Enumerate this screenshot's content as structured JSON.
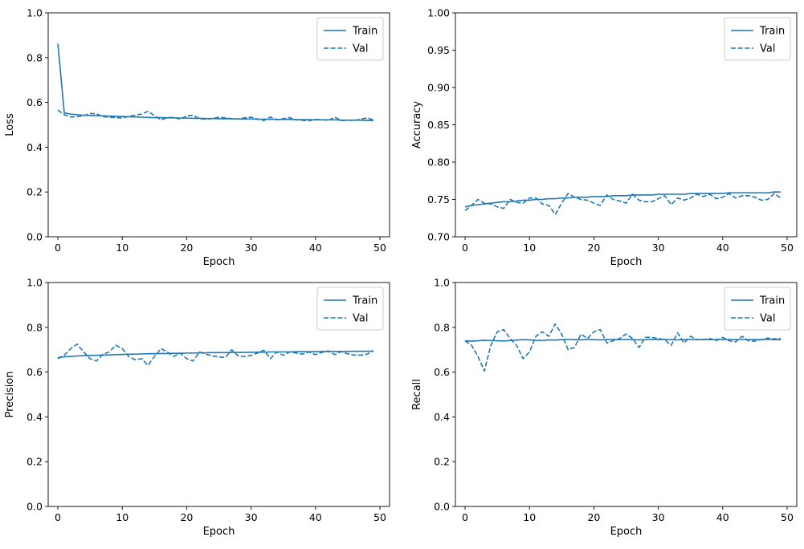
{
  "colors": {
    "series": "#1f77b4",
    "frame": "#000000",
    "legend_border": "#cccccc"
  },
  "chart_data": [
    {
      "type": "line",
      "xlabel": "Epoch",
      "ylabel": "Loss",
      "xlim": [
        -1.5,
        51.5
      ],
      "ylim": [
        0,
        1
      ],
      "xticks": [
        0,
        10,
        20,
        30,
        40,
        50
      ],
      "xtick_labels": [
        "0",
        "10",
        "20",
        "30",
        "40",
        "50"
      ],
      "yticks": [
        0,
        0.2,
        0.4,
        0.6,
        0.8,
        1.0
      ],
      "ytick_labels": [
        "0.0",
        "0.2",
        "0.4",
        "0.6",
        "0.8",
        "1.0"
      ],
      "legend": "top-right",
      "grid": false,
      "series": [
        {
          "name": "Train",
          "style": "solid",
          "values": [
            0.862,
            0.553,
            0.548,
            0.545,
            0.543,
            0.542,
            0.541,
            0.54,
            0.539,
            0.538,
            0.537,
            0.536,
            0.535,
            0.534,
            0.533,
            0.532,
            0.532,
            0.531,
            0.531,
            0.53,
            0.53,
            0.529,
            0.529,
            0.528,
            0.528,
            0.527,
            0.527,
            0.527,
            0.526,
            0.526,
            0.526,
            0.525,
            0.525,
            0.525,
            0.524,
            0.524,
            0.524,
            0.523,
            0.523,
            0.523,
            0.522,
            0.522,
            0.522,
            0.522,
            0.521,
            0.521,
            0.521,
            0.521,
            0.52,
            0.519
          ]
        },
        {
          "name": "Val",
          "style": "dashed",
          "values": [
            0.566,
            0.545,
            0.535,
            0.536,
            0.54,
            0.551,
            0.549,
            0.536,
            0.534,
            0.532,
            0.53,
            0.538,
            0.543,
            0.548,
            0.56,
            0.541,
            0.522,
            0.532,
            0.533,
            0.525,
            0.54,
            0.543,
            0.527,
            0.525,
            0.528,
            0.534,
            0.531,
            0.527,
            0.526,
            0.531,
            0.534,
            0.526,
            0.519,
            0.535,
            0.522,
            0.527,
            0.532,
            0.522,
            0.52,
            0.518,
            0.524,
            0.523,
            0.52,
            0.534,
            0.519,
            0.521,
            0.519,
            0.525,
            0.531,
            0.522
          ]
        }
      ]
    },
    {
      "type": "line",
      "xlabel": "Epoch",
      "ylabel": "Accuracy",
      "xlim": [
        -1.5,
        51.5
      ],
      "ylim": [
        0.7,
        1
      ],
      "xticks": [
        0,
        10,
        20,
        30,
        40,
        50
      ],
      "xtick_labels": [
        "0",
        "10",
        "20",
        "30",
        "40",
        "50"
      ],
      "yticks": [
        0.7,
        0.75,
        0.8,
        0.85,
        0.9,
        0.95,
        1.0
      ],
      "ytick_labels": [
        "0.70",
        "0.75",
        "0.80",
        "0.85",
        "0.90",
        "0.95",
        "1.00"
      ],
      "legend": "top-right",
      "grid": false,
      "series": [
        {
          "name": "Train",
          "style": "solid",
          "values": [
            0.74,
            0.742,
            0.743,
            0.744,
            0.745,
            0.746,
            0.747,
            0.747,
            0.748,
            0.749,
            0.749,
            0.75,
            0.75,
            0.751,
            0.751,
            0.752,
            0.752,
            0.753,
            0.753,
            0.753,
            0.754,
            0.754,
            0.754,
            0.755,
            0.755,
            0.755,
            0.756,
            0.756,
            0.756,
            0.756,
            0.757,
            0.757,
            0.757,
            0.757,
            0.757,
            0.758,
            0.758,
            0.758,
            0.758,
            0.758,
            0.758,
            0.759,
            0.759,
            0.759,
            0.759,
            0.759,
            0.759,
            0.759,
            0.76,
            0.76
          ]
        },
        {
          "name": "Val",
          "style": "dashed",
          "values": [
            0.735,
            0.742,
            0.75,
            0.745,
            0.744,
            0.74,
            0.738,
            0.75,
            0.746,
            0.745,
            0.752,
            0.752,
            0.744,
            0.742,
            0.73,
            0.745,
            0.758,
            0.753,
            0.75,
            0.749,
            0.745,
            0.742,
            0.756,
            0.75,
            0.748,
            0.745,
            0.757,
            0.749,
            0.747,
            0.747,
            0.751,
            0.755,
            0.743,
            0.752,
            0.749,
            0.752,
            0.757,
            0.754,
            0.757,
            0.751,
            0.753,
            0.758,
            0.752,
            0.755,
            0.755,
            0.753,
            0.749,
            0.75,
            0.758,
            0.752
          ]
        }
      ]
    },
    {
      "type": "line",
      "xlabel": "Epoch",
      "ylabel": "Precision",
      "xlim": [
        -1.5,
        51.5
      ],
      "ylim": [
        0,
        1
      ],
      "xticks": [
        0,
        10,
        20,
        30,
        40,
        50
      ],
      "xtick_labels": [
        "0",
        "10",
        "20",
        "30",
        "40",
        "50"
      ],
      "yticks": [
        0,
        0.2,
        0.4,
        0.6,
        0.8,
        1.0
      ],
      "ytick_labels": [
        "0.0",
        "0.2",
        "0.4",
        "0.6",
        "0.8",
        "1.0"
      ],
      "legend": "top-right",
      "grid": false,
      "series": [
        {
          "name": "Train",
          "style": "solid",
          "values": [
            0.665,
            0.668,
            0.67,
            0.672,
            0.673,
            0.674,
            0.675,
            0.676,
            0.677,
            0.678,
            0.679,
            0.68,
            0.68,
            0.681,
            0.682,
            0.682,
            0.683,
            0.683,
            0.684,
            0.684,
            0.685,
            0.685,
            0.686,
            0.686,
            0.687,
            0.687,
            0.687,
            0.688,
            0.688,
            0.688,
            0.689,
            0.689,
            0.689,
            0.69,
            0.69,
            0.69,
            0.69,
            0.691,
            0.691,
            0.691,
            0.691,
            0.692,
            0.692,
            0.692,
            0.692,
            0.693,
            0.693,
            0.693,
            0.693,
            0.694
          ]
        },
        {
          "name": "Val",
          "style": "dashed",
          "values": [
            0.66,
            0.675,
            0.705,
            0.725,
            0.69,
            0.66,
            0.65,
            0.68,
            0.69,
            0.72,
            0.705,
            0.67,
            0.655,
            0.66,
            0.63,
            0.67,
            0.705,
            0.69,
            0.67,
            0.685,
            0.66,
            0.65,
            0.69,
            0.68,
            0.672,
            0.668,
            0.665,
            0.7,
            0.672,
            0.67,
            0.675,
            0.685,
            0.698,
            0.66,
            0.69,
            0.675,
            0.69,
            0.685,
            0.68,
            0.69,
            0.678,
            0.688,
            0.695,
            0.678,
            0.692,
            0.682,
            0.676,
            0.676,
            0.68,
            0.695
          ]
        }
      ]
    },
    {
      "type": "line",
      "xlabel": "Epoch",
      "ylabel": "Recall",
      "xlim": [
        -1.5,
        51.5
      ],
      "ylim": [
        0,
        1
      ],
      "xticks": [
        0,
        10,
        20,
        30,
        40,
        50
      ],
      "xtick_labels": [
        "0",
        "10",
        "20",
        "30",
        "40",
        "50"
      ],
      "yticks": [
        0,
        0.2,
        0.4,
        0.6,
        0.8,
        1.0
      ],
      "ytick_labels": [
        "0.0",
        "0.2",
        "0.4",
        "0.6",
        "0.8",
        "1.0"
      ],
      "legend": "top-right",
      "grid": false,
      "series": [
        {
          "name": "Train",
          "style": "solid",
          "values": [
            0.74,
            0.738,
            0.74,
            0.742,
            0.741,
            0.74,
            0.739,
            0.741,
            0.743,
            0.745,
            0.744,
            0.742,
            0.741,
            0.744,
            0.743,
            0.745,
            0.746,
            0.745,
            0.744,
            0.746,
            0.745,
            0.744,
            0.745,
            0.746,
            0.745,
            0.746,
            0.745,
            0.744,
            0.745,
            0.746,
            0.745,
            0.746,
            0.745,
            0.744,
            0.745,
            0.746,
            0.745,
            0.746,
            0.745,
            0.746,
            0.745,
            0.746,
            0.745,
            0.746,
            0.745,
            0.746,
            0.745,
            0.746,
            0.745,
            0.745
          ]
        },
        {
          "name": "Val",
          "style": "dashed",
          "values": [
            0.74,
            0.72,
            0.67,
            0.605,
            0.72,
            0.78,
            0.79,
            0.75,
            0.72,
            0.66,
            0.69,
            0.76,
            0.78,
            0.76,
            0.815,
            0.77,
            0.7,
            0.71,
            0.77,
            0.75,
            0.78,
            0.79,
            0.73,
            0.74,
            0.75,
            0.77,
            0.75,
            0.71,
            0.755,
            0.755,
            0.75,
            0.745,
            0.72,
            0.775,
            0.73,
            0.76,
            0.745,
            0.745,
            0.75,
            0.74,
            0.755,
            0.74,
            0.735,
            0.76,
            0.74,
            0.738,
            0.745,
            0.752,
            0.748,
            0.75
          ]
        }
      ]
    }
  ]
}
